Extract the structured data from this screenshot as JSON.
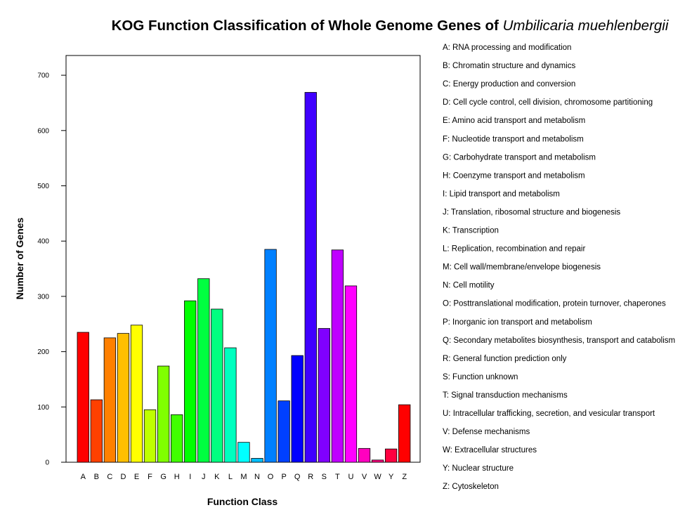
{
  "chart_data": {
    "type": "bar",
    "title": "KOG Function Classification of Whole Genome Genes of",
    "title_italic": "Umbilicaria muehlenbergii",
    "xlabel": "Function Class",
    "ylabel": "Number of Genes",
    "ylim": [
      0,
      760
    ],
    "yticks": [
      0,
      100,
      200,
      300,
      400,
      500,
      600,
      700
    ],
    "grid": false,
    "legend_position": "right",
    "categories": [
      "A",
      "B",
      "C",
      "D",
      "E",
      "F",
      "G",
      "H",
      "I",
      "J",
      "K",
      "L",
      "M",
      "N",
      "O",
      "P",
      "Q",
      "R",
      "S",
      "T",
      "U",
      "V",
      "W",
      "Y",
      "Z"
    ],
    "values": [
      235,
      113,
      225,
      233,
      248,
      95,
      174,
      86,
      292,
      332,
      277,
      207,
      36,
      7,
      385,
      111,
      193,
      669,
      242,
      384,
      319,
      25,
      4,
      24,
      104
    ],
    "colors": [
      "#ff0000",
      "#ff4000",
      "#ff8000",
      "#ffbf00",
      "#ffff00",
      "#bfff00",
      "#80ff00",
      "#40ff00",
      "#00ff00",
      "#00ff40",
      "#00ff80",
      "#00ffbf",
      "#00ffff",
      "#00bfff",
      "#0080ff",
      "#0040ff",
      "#0000ff",
      "#4000ff",
      "#8000ff",
      "#bf00ff",
      "#ff00ff",
      "#ff00bf",
      "#ff0080",
      "#ff0040",
      "#ff0000"
    ],
    "legend": [
      "A: RNA processing and modification",
      "B: Chromatin structure and dynamics",
      "C: Energy production and conversion",
      "D: Cell cycle control, cell division, chromosome partitioning",
      "E: Amino acid transport and metabolism",
      "F: Nucleotide transport and metabolism",
      "G: Carbohydrate transport and metabolism",
      "H: Coenzyme transport and metabolism",
      "I: Lipid transport and metabolism",
      "J: Translation, ribosomal structure and biogenesis",
      "K: Transcription",
      "L: Replication, recombination and repair",
      "M: Cell wall/membrane/envelope biogenesis",
      "N: Cell motility",
      "O: Posttranslational modification, protein turnover, chaperones",
      "P: Inorganic ion transport and metabolism",
      "Q: Secondary metabolites biosynthesis, transport and catabolism",
      "R: General function prediction only",
      "S: Function unknown",
      "T: Signal transduction mechanisms",
      "U: Intracellular trafficking, secretion, and vesicular transport",
      "V: Defense mechanisms",
      "W: Extracellular structures",
      "Y: Nuclear structure",
      "Z: Cytoskeleton"
    ]
  }
}
